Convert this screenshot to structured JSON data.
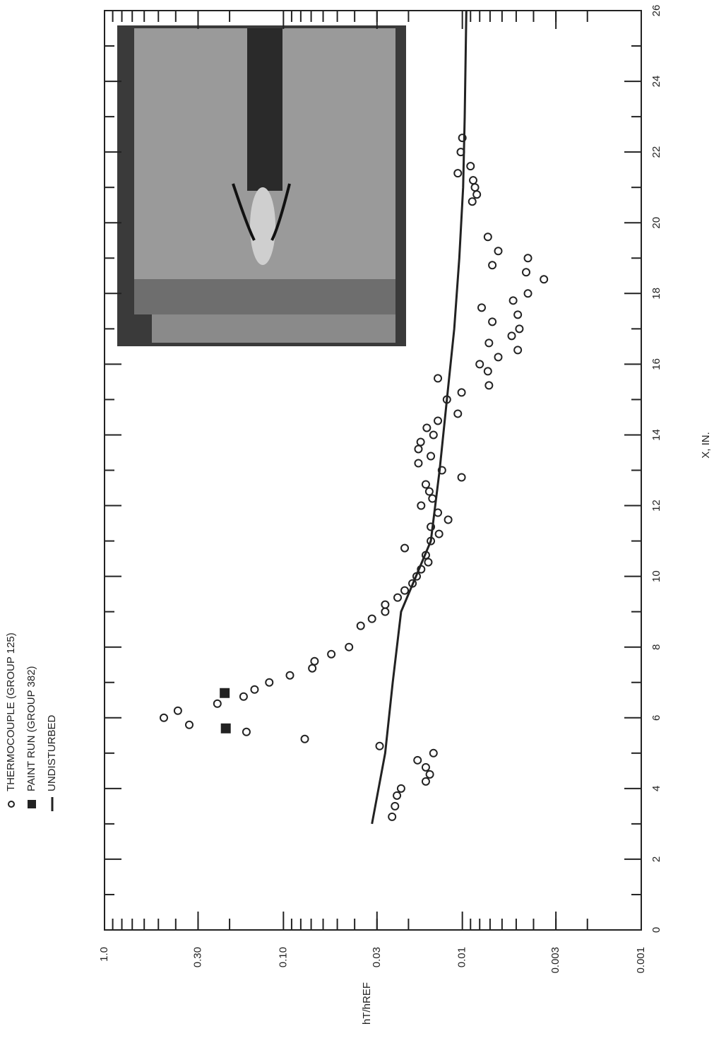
{
  "chart_data": {
    "type": "scatter",
    "xlabel": "X, IN.",
    "ylabel": "hT/hREF",
    "xlim": [
      0,
      26
    ],
    "xticks": [
      0,
      2,
      4,
      6,
      8,
      10,
      12,
      14,
      16,
      18,
      20,
      22,
      24,
      26
    ],
    "ylim": [
      0.001,
      1
    ],
    "log_y": true,
    "yticks": [
      {
        "value": 1,
        "label": "1.0"
      },
      {
        "value": 0.3,
        "label": "0.30"
      },
      {
        "value": 0.1,
        "label": "0.10"
      },
      {
        "value": 0.03,
        "label": "0.03"
      },
      {
        "value": 0.01,
        "label": "0.01"
      },
      {
        "value": 0.003,
        "label": "0.003"
      },
      {
        "value": 0.001,
        "label": "0.001"
      }
    ],
    "series": [
      {
        "name": "THERMOCOUPLE (GROUP 125)",
        "marker": "circle",
        "color": "#222",
        "x": [
          3.2,
          3.5,
          3.8,
          4.0,
          4.2,
          4.4,
          4.6,
          4.8,
          5.0,
          5.2,
          5.4,
          5.6,
          6.0,
          5.8,
          6.2,
          6.4,
          6.6,
          6.8,
          7.0,
          7.2,
          7.4,
          7.6,
          7.8,
          8.0,
          8.6,
          8.8,
          9.0,
          9.2,
          9.4,
          9.6,
          9.8,
          10.0,
          10.2,
          10.6,
          10.4,
          10.8,
          11.0,
          11.2,
          11.4,
          11.6,
          11.8,
          12.0,
          12.2,
          12.4,
          12.6,
          12.8,
          13.0,
          13.4,
          13.2,
          13.6,
          13.8,
          14.0,
          14.2,
          14.4,
          14.6,
          15.0,
          15.2,
          15.6,
          15.4,
          15.8,
          16.0,
          16.2,
          16.4,
          16.6,
          16.8,
          17.0,
          17.2,
          17.4,
          17.6,
          17.8,
          18.0,
          18.4,
          18.6,
          19.0,
          18.8,
          19.2,
          19.6,
          20.6,
          20.8,
          21.0,
          21.2,
          21.4,
          21.6,
          22.0,
          22.4
        ],
        "values": [
          0.0247,
          0.0238,
          0.0232,
          0.022,
          0.016,
          0.0152,
          0.016,
          0.0178,
          0.0145,
          0.029,
          0.076,
          0.161,
          0.466,
          0.336,
          0.389,
          0.234,
          0.167,
          0.145,
          0.12,
          0.092,
          0.069,
          0.067,
          0.054,
          0.043,
          0.037,
          0.032,
          0.027,
          0.027,
          0.023,
          0.021,
          0.019,
          0.018,
          0.017,
          0.016,
          0.0155,
          0.021,
          0.015,
          0.0135,
          0.015,
          0.012,
          0.0137,
          0.017,
          0.0147,
          0.0153,
          0.016,
          0.0101,
          0.013,
          0.015,
          0.0176,
          0.0176,
          0.0171,
          0.0145,
          0.0158,
          0.0137,
          0.0106,
          0.0122,
          0.0101,
          0.0137,
          0.0071,
          0.0072,
          0.008,
          0.0063,
          0.0049,
          0.0071,
          0.0053,
          0.0048,
          0.0068,
          0.0049,
          0.0078,
          0.0052,
          0.0043,
          0.0035,
          0.0044,
          0.0043,
          0.0068,
          0.0063,
          0.0072,
          0.0088,
          0.0083,
          0.0085,
          0.0087,
          0.0106,
          0.009,
          0.0102,
          0.01
        ]
      },
      {
        "name": "PAINT RUN (GROUP 382)",
        "marker": "square",
        "color": "#222",
        "x": [
          5.7,
          6.7
        ],
        "values": [
          0.21,
          0.213
        ]
      },
      {
        "name": "UNDISTURBED",
        "marker": "line",
        "color": "#222",
        "x": [
          3,
          5,
          7,
          9,
          11,
          13,
          15,
          17,
          19,
          21,
          23,
          26
        ],
        "values": [
          0.032,
          0.027,
          0.0245,
          0.022,
          0.015,
          0.0134,
          0.0122,
          0.0111,
          0.0104,
          0.0099,
          0.0097,
          0.0095
        ]
      }
    ]
  }
}
